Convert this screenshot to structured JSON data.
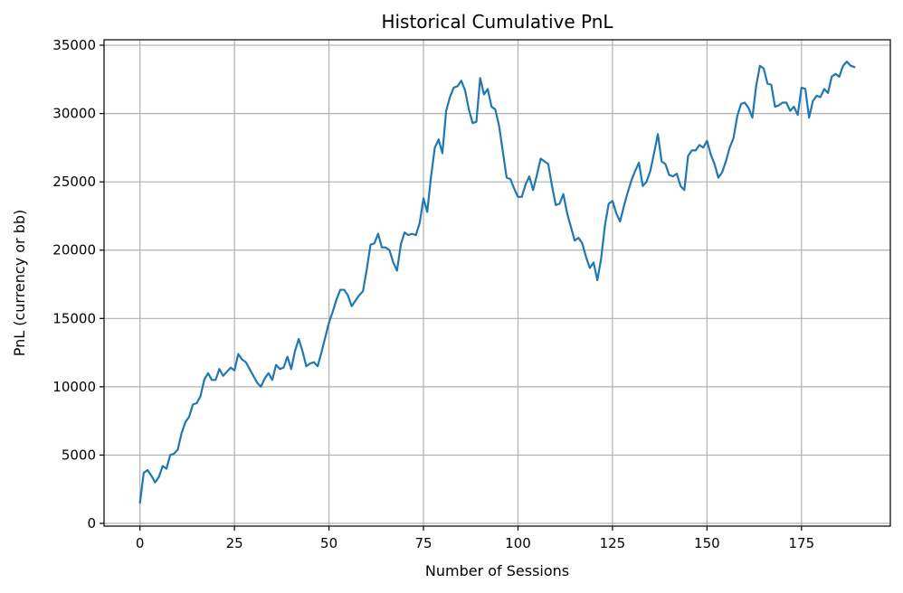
{
  "chart_data": {
    "type": "line",
    "title": "Historical Cumulative PnL",
    "xlabel": "Number of Sessions",
    "ylabel": "PnL (currency or bb)",
    "xlim": [
      -9.5,
      198.5
    ],
    "ylim": [
      -200,
      35400
    ],
    "xticks": [
      0,
      25,
      50,
      75,
      100,
      125,
      150,
      175
    ],
    "yticks": [
      0,
      5000,
      10000,
      15000,
      20000,
      25000,
      30000,
      35000
    ],
    "grid": true,
    "series": [
      {
        "color": "#1f77b4",
        "values": [
          1500,
          3700,
          3900,
          3500,
          3000,
          3400,
          4200,
          4000,
          5000,
          5100,
          5400,
          6600,
          7400,
          7800,
          8700,
          8800,
          9300,
          10500,
          11000,
          10500,
          10500,
          11300,
          10800,
          11100,
          11400,
          11200,
          12400,
          12000,
          11800,
          11300,
          10800,
          10300,
          10000,
          10600,
          11000,
          10500,
          11600,
          11300,
          11400,
          12200,
          11300,
          12600,
          13500,
          12600,
          11500,
          11700,
          11800,
          11500,
          12500,
          13600,
          14700,
          15500,
          16400,
          17100,
          17100,
          16700,
          15900,
          16300,
          16700,
          17000,
          18600,
          20400,
          20500,
          21200,
          20200,
          20200,
          20000,
          19100,
          18500,
          20400,
          21300,
          21100,
          21200,
          21100,
          22000,
          23800,
          22800,
          25400,
          27500,
          28100,
          27100,
          30200,
          31200,
          31900,
          32000,
          32400,
          31700,
          30300,
          29300,
          29400,
          32600,
          31400,
          31800,
          30500,
          30300,
          29100,
          27200,
          25300,
          25200,
          24500,
          23900,
          23900,
          24800,
          25400,
          24400,
          25500,
          26700,
          26500,
          26300,
          24700,
          23300,
          23400,
          24100,
          22700,
          21700,
          20700,
          20900,
          20500,
          19500,
          18700,
          19100,
          17800,
          19400,
          21800,
          23400,
          23600,
          22700,
          22100,
          23200,
          24200,
          25100,
          25800,
          26400,
          24700,
          25000,
          25800,
          27100,
          28500,
          26500,
          26300,
          25500,
          25400,
          25600,
          24700,
          24400,
          26900,
          27300,
          27300,
          27700,
          27500,
          28000,
          27000,
          26300,
          25300,
          25700,
          26500,
          27500,
          28200,
          29800,
          30700,
          30800,
          30400,
          29700,
          32000,
          33500,
          33300,
          32200,
          32100,
          30500,
          30600,
          30800,
          30800,
          30200,
          30500,
          29900,
          31900,
          31800,
          29700,
          30900,
          31300,
          31200,
          31800,
          31500,
          32700,
          32900,
          32700,
          33500,
          33800,
          33500,
          33400
        ]
      }
    ]
  }
}
